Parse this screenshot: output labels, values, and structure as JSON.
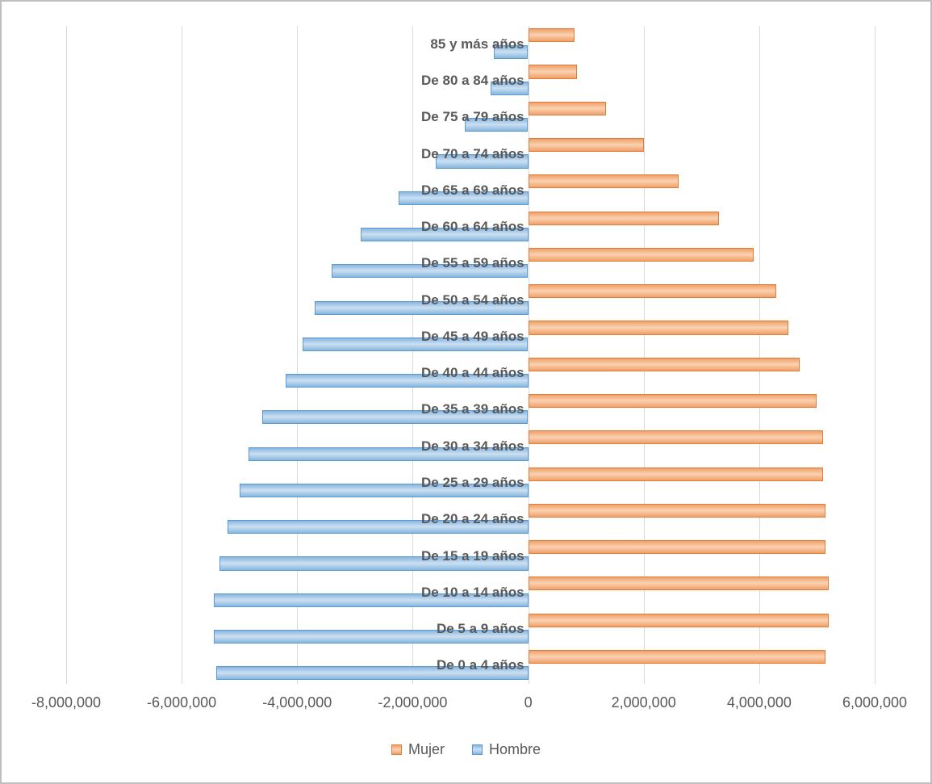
{
  "chart_data": {
    "type": "bar",
    "orientation": "horizontal",
    "title": "",
    "xlabel": "",
    "ylabel": "",
    "grid": true,
    "legend_position": "bottom",
    "xlim": [
      -8000000,
      6000000
    ],
    "x_tick_values": [
      -8000000,
      -6000000,
      -4000000,
      -2000000,
      0,
      2000000,
      4000000,
      6000000
    ],
    "x_tick_labels": [
      "-8,000,000",
      "-6,000,000",
      "-4,000,000",
      "-2,000,000",
      "0",
      "2,000,000",
      "4,000,000",
      "6,000,000"
    ],
    "categories": [
      "85 y más años",
      "De 80 a 84 años",
      "De 75 a 79 años",
      "De 70 a 74 años",
      "De 65 a 69 años",
      "De 60 a 64 años",
      "De 55 a 59 años",
      "De 50 a 54 años",
      "De 45 a 49 años",
      "De 40 a 44 años",
      "De 35 a 39 años",
      "De 30 a 34 años",
      "De 25 a 29 años",
      "De 20 a 24 años",
      "De 15 a 19 años",
      "De 10 a 14 años",
      "De 5 a 9 años",
      "De 0 a 4 años"
    ],
    "series": [
      {
        "name": "Mujer",
        "colors": {
          "border": "#e07e3a",
          "edge": "#f0a068",
          "mid": "#fad2b2"
        },
        "values": [
          800000,
          850000,
          1350000,
          2000000,
          2600000,
          3300000,
          3900000,
          4300000,
          4500000,
          4700000,
          5000000,
          5100000,
          5100000,
          5150000,
          5150000,
          5200000,
          5200000,
          5150000
        ]
      },
      {
        "name": "Hombre",
        "colors": {
          "border": "#5b9bd5",
          "edge": "#88b6df",
          "mid": "#cbe0f2"
        },
        "values": [
          -600000,
          -650000,
          -1100000,
          -1600000,
          -2250000,
          -2900000,
          -3400000,
          -3700000,
          -3900000,
          -4200000,
          -4600000,
          -4850000,
          -5000000,
          -5200000,
          -5350000,
          -5450000,
          -5450000,
          -5400000
        ]
      }
    ]
  }
}
